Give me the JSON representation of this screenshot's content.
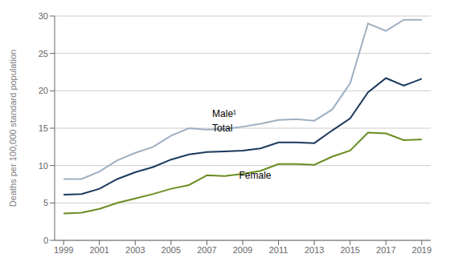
{
  "chart_data": {
    "type": "line",
    "ylabel": "Deaths per 100,000 standard population",
    "x": [
      1999,
      2000,
      2001,
      2002,
      2003,
      2004,
      2005,
      2006,
      2007,
      2008,
      2009,
      2010,
      2011,
      2012,
      2013,
      2014,
      2015,
      2016,
      2017,
      2018,
      2019
    ],
    "series": [
      {
        "color": "#9eafc2",
        "values": [
          8.2,
          8.2,
          9.2,
          10.7,
          11.7,
          12.5,
          14.0,
          15.0,
          14.8,
          14.9,
          15.2,
          15.6,
          16.1,
          16.2,
          16.0,
          17.5,
          21.0,
          29.0,
          28.0,
          29.5,
          29.5
        ]
      },
      {
        "color": "#1a3a5c",
        "values": [
          6.1,
          6.2,
          6.9,
          8.2,
          9.1,
          9.8,
          10.8,
          11.5,
          11.8,
          11.9,
          12.0,
          12.3,
          13.1,
          13.1,
          13.0,
          14.7,
          16.3,
          19.8,
          21.7,
          20.7,
          21.6
        ]
      },
      {
        "color": "#6a8c20",
        "values": [
          3.6,
          3.7,
          4.2,
          5.0,
          5.6,
          6.2,
          6.9,
          7.4,
          8.7,
          8.6,
          8.9,
          9.3,
          10.2,
          10.2,
          10.1,
          11.2,
          12.0,
          14.4,
          14.3,
          13.4,
          13.5
        ]
      }
    ],
    "annotations": [
      {
        "text": "Male¹",
        "x": 2007.3,
        "y": 16.5
      },
      {
        "text": "Total",
        "x": 2007.3,
        "y": 14.6
      },
      {
        "text": "Female",
        "x": 2008.8,
        "y": 8.2
      }
    ],
    "xlim": [
      1998.5,
      2019.5
    ],
    "xticks": [
      1999,
      2001,
      2003,
      2005,
      2007,
      2009,
      2011,
      2013,
      2015,
      2017,
      2019
    ],
    "ylim": [
      0,
      30
    ],
    "yticks": [
      0,
      5,
      10,
      15,
      20,
      25,
      30
    ],
    "grid": true
  }
}
